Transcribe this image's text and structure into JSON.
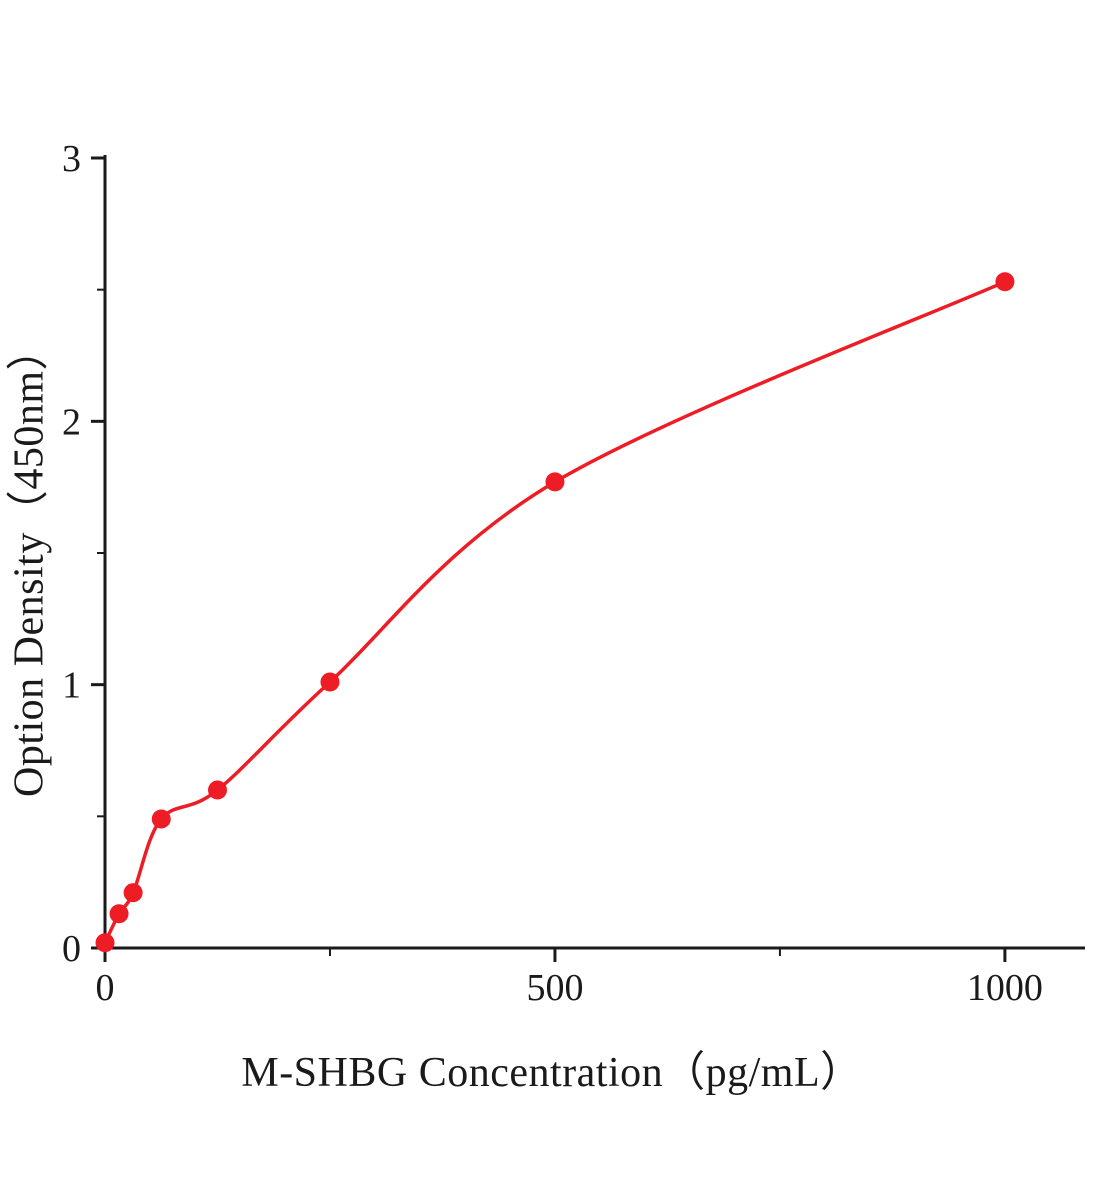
{
  "chart_data": {
    "type": "scatter",
    "title": "",
    "xlabel": "M-SHBG Concentration（pg/mL）",
    "ylabel": "Option Density（450nm）",
    "x": [
      0,
      15.6,
      31.25,
      62.5,
      125,
      250,
      500,
      1000
    ],
    "y": [
      0.02,
      0.13,
      0.21,
      0.49,
      0.6,
      1.01,
      1.77,
      2.53
    ],
    "x_ticks": [
      0,
      500,
      1000
    ],
    "x_tick_labels": [
      "0",
      "500",
      "1000"
    ],
    "y_ticks": [
      0,
      1,
      2,
      3
    ],
    "y_tick_labels": [
      "0",
      "1",
      "2",
      "3"
    ],
    "x_minor_ticks": [
      250,
      750
    ],
    "y_minor_ticks": [
      0.5,
      1.5,
      2.5
    ],
    "xlim": [
      0,
      1089
    ],
    "ylim": [
      0,
      3
    ],
    "grid": false,
    "legend": null,
    "point_color": "#ee1c25",
    "line_color": "#ee1c25",
    "axis_color": "#1a1a1a",
    "curve": "smooth saturating fit through data points"
  }
}
